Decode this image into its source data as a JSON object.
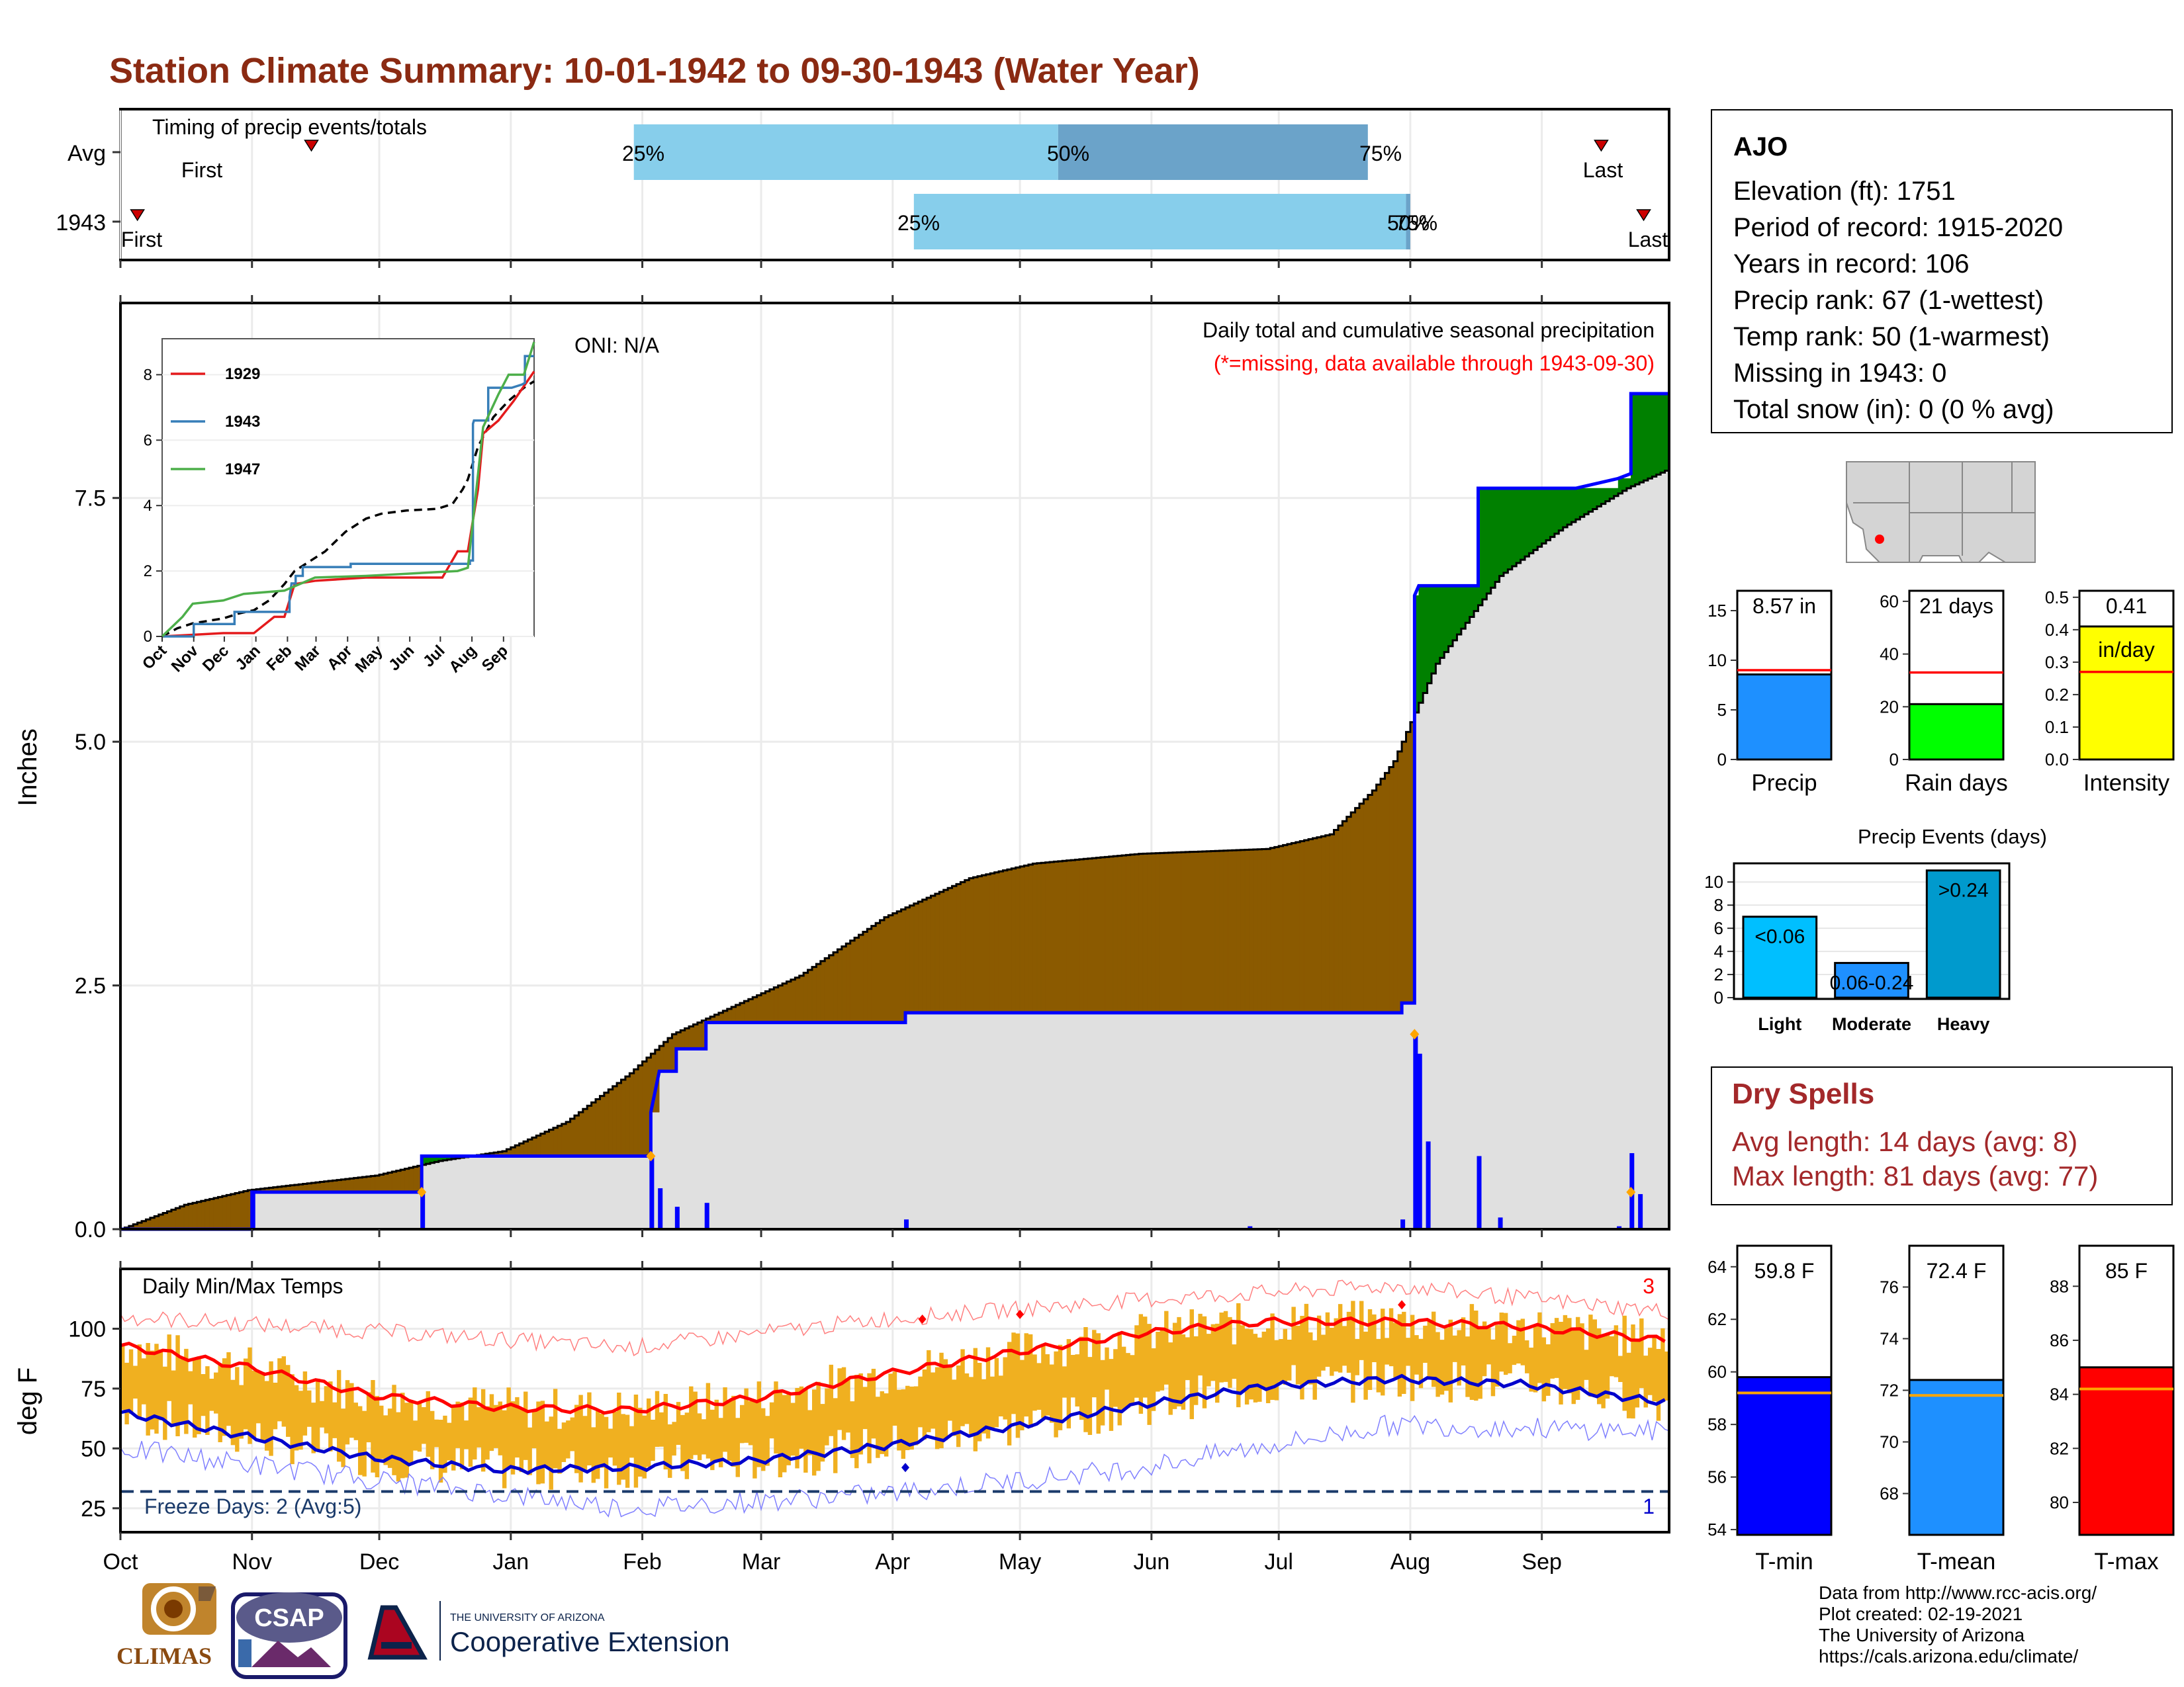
{
  "title": "Station Climate Summary: 10-01-1942 to 09-30-1943 (Water Year)",
  "colors": {
    "title": "#8b2a12",
    "cum_year": "#0000ff",
    "cum_avg": "#e0e0e0",
    "deficit": "#8b5a00",
    "surplus": "#008000",
    "bar_light": "#87ceeb",
    "bar_dark": "#6ba3c9",
    "temp_bar": "#f0b020",
    "tmax_line": "#ff0000",
    "tmin_line": "#0000cc",
    "dry_spells": "#a3282a"
  },
  "timing_panel": {
    "title": "Timing of precip events/totals",
    "rows": [
      "Avg",
      "1943"
    ],
    "labels": {
      "first": "First",
      "last": "Last",
      "p25": "25%",
      "p50": "50%",
      "p75": "75%"
    }
  },
  "precip_panel": {
    "ylabel": "Inches",
    "yticks": [
      "0.0",
      "2.5",
      "5.0",
      "7.5"
    ],
    "oni": "ONI: N/A",
    "subtitle": "Daily total and cumulative seasonal precipitation",
    "missing_note": "(*=missing, data available through 1943-09-30)"
  },
  "inset": {
    "yticks": [
      "0",
      "2",
      "4",
      "6",
      "8"
    ],
    "xticks": [
      "Oct",
      "Nov",
      "Dec",
      "Jan",
      "Feb",
      "Mar",
      "Apr",
      "May",
      "Jun",
      "Jul",
      "Aug",
      "Sep"
    ],
    "legend": [
      {
        "name": "1929",
        "color": "#e41a1c"
      },
      {
        "name": "1943",
        "color": "#377eb8"
      },
      {
        "name": "1947",
        "color": "#4daf4a"
      }
    ]
  },
  "temp_panel": {
    "title": "Daily Min/Max Temps",
    "ylabel": "deg F",
    "yticks": [
      "25",
      "50",
      "75",
      "100"
    ],
    "freeze_label": "Freeze Days: 2 (Avg:5)",
    "record_high_count": "3",
    "record_low_count": "1"
  },
  "months": [
    "Oct",
    "Nov",
    "Dec",
    "Jan",
    "Feb",
    "Mar",
    "Apr",
    "May",
    "Jun",
    "Jul",
    "Aug",
    "Sep"
  ],
  "station": {
    "name": "AJO",
    "lines": [
      "Elevation (ft): 1751",
      "Period of record: 1915-2020",
      "Years in record: 106",
      "Precip rank: 67 (1-wettest)",
      "Temp rank: 50 (1-warmest)",
      "Missing in 1943: 0",
      "Total snow (in): 0 (0 % avg)"
    ]
  },
  "summary_bars": [
    {
      "label": "Precip",
      "value_text": "8.57 in",
      "yticks": [
        "0",
        "5",
        "10",
        "15"
      ],
      "color": "#1e90ff"
    },
    {
      "label": "Rain days",
      "value_text": "21 days",
      "yticks": [
        "0",
        "20",
        "40",
        "60"
      ],
      "color": "#00ff00"
    },
    {
      "label": "Intensity",
      "value_text": "0.41",
      "unit": "in/day",
      "yticks": [
        "0.0",
        "0.1",
        "0.2",
        "0.3",
        "0.4",
        "0.5"
      ],
      "color": "#ffff00"
    }
  ],
  "precip_events": {
    "title": "Precip Events (days)",
    "yticks": [
      "0",
      "2",
      "4",
      "6",
      "8",
      "10"
    ],
    "categories": [
      "Light",
      "Moderate",
      "Heavy"
    ],
    "bar_labels": [
      "<0.06",
      "0.06-0.24",
      ">0.24"
    ]
  },
  "dry_spells": {
    "title": "Dry Spells",
    "avg": "Avg length: 14 days (avg: 8)",
    "max": "Max length: 81 days (avg: 77)"
  },
  "temp_summary": [
    {
      "label": "T-min",
      "value_text": "59.8 F",
      "yticks": [
        "54",
        "56",
        "58",
        "60",
        "62",
        "64"
      ],
      "color": "#0000ff"
    },
    {
      "label": "T-mean",
      "value_text": "72.4 F",
      "yticks": [
        "68",
        "70",
        "72",
        "74",
        "76"
      ],
      "color": "#1e90ff"
    },
    {
      "label": "T-max",
      "value_text": "85 F",
      "yticks": [
        "80",
        "82",
        "84",
        "86",
        "88"
      ],
      "color": "#ff0000"
    }
  ],
  "credits": [
    "Data from http://www.rcc-acis.org/",
    "Plot created: 02-19-2021",
    "The University of Arizona",
    "https://cals.arizona.edu/climate/"
  ],
  "logos": {
    "climas": "CLIMAS",
    "csap": "CSAP",
    "ua_small": "THE UNIVERSITY OF ARIZONA",
    "ua_main": "Cooperative Extension"
  },
  "chart_data": [
    {
      "type": "bar",
      "title": "Timing of precip events/totals",
      "categories": [
        "Avg",
        "1943"
      ],
      "series": [
        {
          "name": "First",
          "values": [
            "1942-11-15",
            "1942-10-05"
          ]
        },
        {
          "name": "25%",
          "values": [
            "1943-01-30",
            "1943-04-06"
          ]
        },
        {
          "name": "50%",
          "values": [
            "1943-05-10",
            "1943-07-31"
          ]
        },
        {
          "name": "75%",
          "values": [
            "1943-07-22",
            "1943-08-01"
          ]
        },
        {
          "name": "Last",
          "values": [
            "1943-09-15",
            "1943-09-25"
          ]
        }
      ]
    },
    {
      "type": "area",
      "title": "Daily total and cumulative seasonal precipitation",
      "ylabel": "Inches",
      "ylim": [
        0,
        9.5
      ],
      "avg_cumulative": [
        [
          0,
          0
        ],
        [
          15,
          0.25
        ],
        [
          30,
          0.4
        ],
        [
          60,
          0.55
        ],
        [
          75,
          0.7
        ],
        [
          90,
          0.8
        ],
        [
          105,
          1.1
        ],
        [
          120,
          1.6
        ],
        [
          130,
          2.0
        ],
        [
          160,
          2.6
        ],
        [
          180,
          3.2
        ],
        [
          200,
          3.6
        ],
        [
          215,
          3.75
        ],
        [
          240,
          3.85
        ],
        [
          270,
          3.9
        ],
        [
          285,
          4.05
        ],
        [
          295,
          4.5
        ],
        [
          300,
          4.8
        ],
        [
          310,
          5.8
        ],
        [
          325,
          6.7
        ],
        [
          340,
          7.2
        ],
        [
          355,
          7.6
        ],
        [
          365,
          7.8
        ]
      ],
      "year_cumulative": [
        [
          0,
          0
        ],
        [
          31,
          0
        ],
        [
          31,
          0.38
        ],
        [
          71,
          0.38
        ],
        [
          71,
          0.75
        ],
        [
          125,
          0.75
        ],
        [
          125,
          1.2
        ],
        [
          127,
          1.62
        ],
        [
          131,
          1.62
        ],
        [
          131,
          1.85
        ],
        [
          138,
          1.85
        ],
        [
          138,
          2.12
        ],
        [
          185,
          2.12
        ],
        [
          185,
          2.22
        ],
        [
          302,
          2.22
        ],
        [
          302,
          2.32
        ],
        [
          305,
          2.32
        ],
        [
          305,
          6.5
        ],
        [
          306,
          6.6
        ],
        [
          320,
          6.6
        ],
        [
          320,
          7.6
        ],
        [
          343,
          7.6
        ],
        [
          353,
          7.7
        ],
        [
          356,
          7.75
        ],
        [
          356,
          8.57
        ],
        [
          365,
          8.57
        ]
      ],
      "daily": [
        [
          31,
          0.38
        ],
        [
          71,
          0.37
        ],
        [
          125,
          0.75
        ],
        [
          127,
          0.42
        ],
        [
          131,
          0.23
        ],
        [
          138,
          0.27
        ],
        [
          185,
          0.1
        ],
        [
          266,
          0.03
        ],
        [
          302,
          0.1
        ],
        [
          305,
          2.0
        ],
        [
          306,
          1.8
        ],
        [
          308,
          0.9
        ],
        [
          320,
          0.75
        ],
        [
          325,
          0.12
        ],
        [
          353,
          0.03
        ],
        [
          356,
          0.78
        ],
        [
          358,
          0.36
        ]
      ]
    },
    {
      "type": "line",
      "title": "Daily Min/Max Temps",
      "ylabel": "deg F",
      "ylim": [
        15,
        125
      ],
      "series": [
        {
          "name": "avg max",
          "x": [
            0,
            30,
            60,
            90,
            120,
            150,
            180,
            210,
            240,
            270,
            300,
            330,
            365
          ],
          "values": [
            93,
            84,
            72,
            67,
            66,
            71,
            81,
            90,
            98,
            103,
            103,
            101,
            95
          ]
        },
        {
          "name": "avg min",
          "x": [
            0,
            30,
            60,
            90,
            120,
            150,
            180,
            210,
            240,
            270,
            300,
            330,
            365
          ],
          "values": [
            65,
            55,
            46,
            41,
            42,
            45,
            51,
            59,
            68,
            76,
            79,
            77,
            69
          ]
        },
        {
          "name": "record high",
          "x": [
            0,
            60,
            120,
            180,
            240,
            300,
            365
          ],
          "values": [
            105,
            99,
            92,
            104,
            112,
            118,
            107
          ]
        },
        {
          "name": "record low",
          "x": [
            0,
            60,
            120,
            180,
            240,
            300,
            365
          ],
          "values": [
            50,
            37,
            25,
            31,
            42,
            60,
            57
          ]
        },
        {
          "name": "freeze",
          "values": [
            32
          ]
        }
      ]
    },
    {
      "type": "bar",
      "title": "Precip Events (days)",
      "categories": [
        "Light",
        "Moderate",
        "Heavy"
      ],
      "values": [
        7,
        3,
        11
      ],
      "ylim": [
        0,
        11.5
      ]
    },
    {
      "type": "bar",
      "categories": [
        "Precip",
        "Rain days",
        "Intensity"
      ],
      "values": [
        8.57,
        21,
        0.41
      ],
      "averages": [
        9.0,
        33,
        0.27
      ]
    },
    {
      "type": "bar",
      "categories": [
        "T-min",
        "T-mean",
        "T-max"
      ],
      "values": [
        59.8,
        72.4,
        85
      ],
      "averages": [
        59.2,
        71.8,
        84.2
      ]
    }
  ]
}
